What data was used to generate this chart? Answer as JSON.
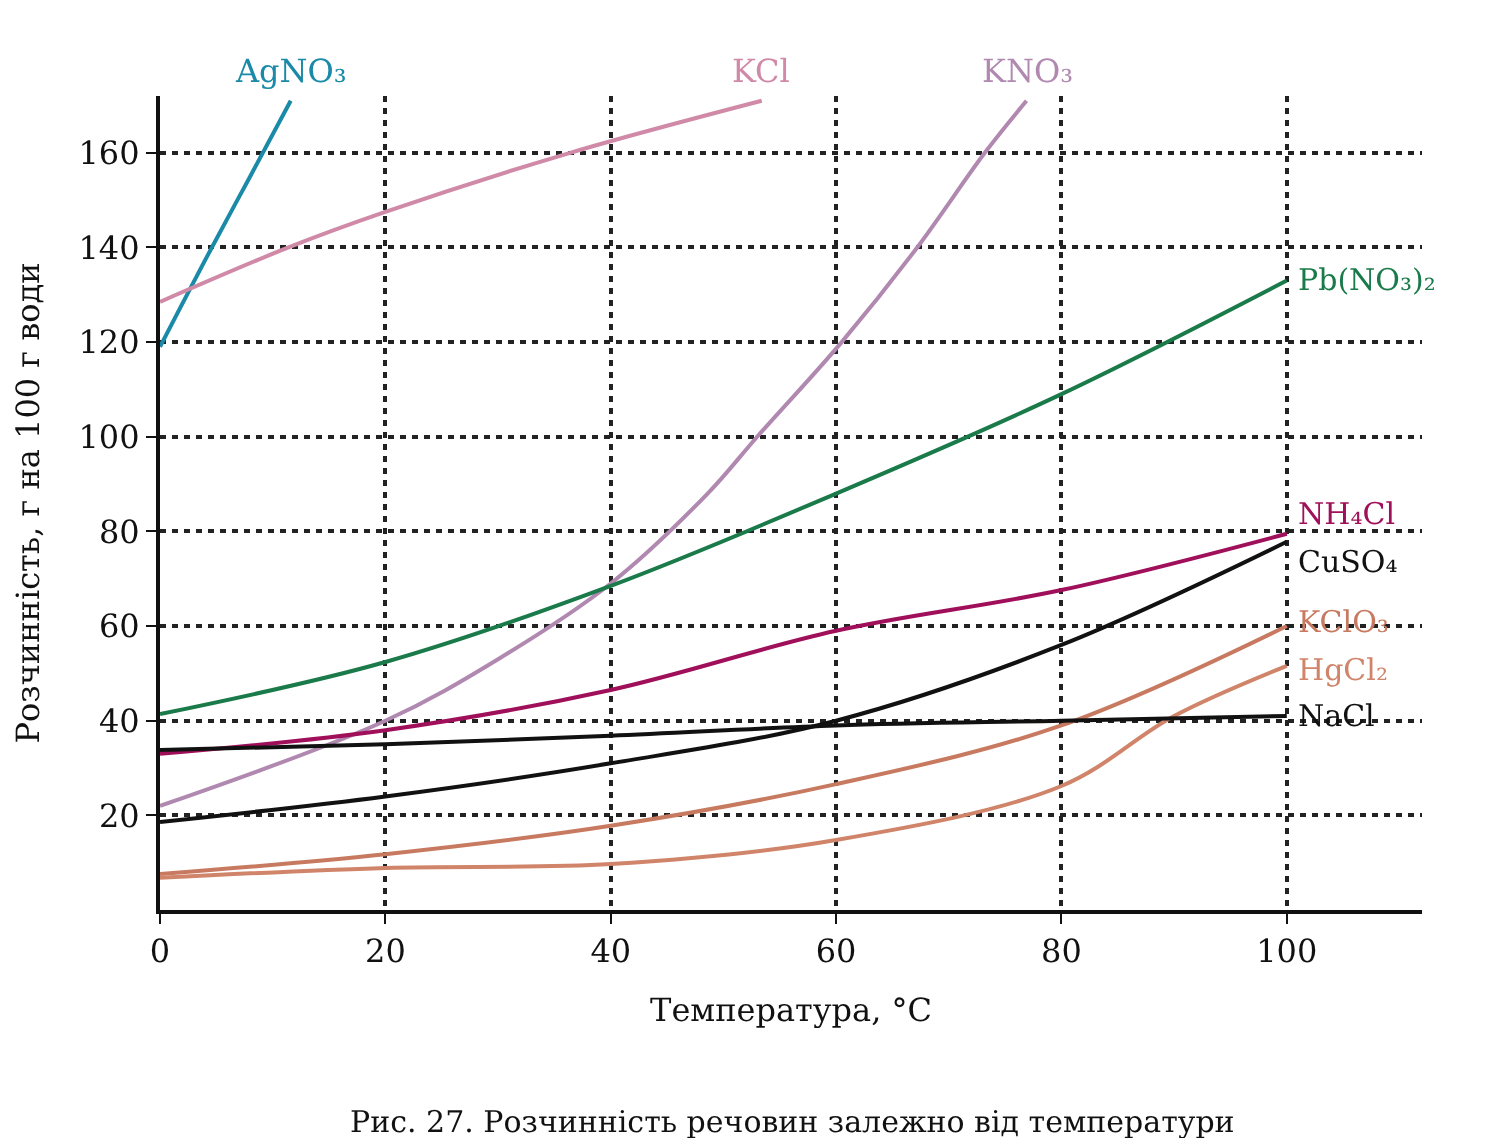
{
  "chart_data": {
    "type": "line",
    "xlabel": "Температура, °C",
    "ylabel": "Розчинність, г на 100 г води",
    "xlim": [
      0,
      112
    ],
    "xticks": [
      0,
      20,
      40,
      60,
      80,
      100
    ],
    "ylim": [
      0,
      172
    ],
    "yticks": [
      20,
      40,
      60,
      80,
      100,
      120,
      140,
      160
    ],
    "grid": true,
    "legend": false,
    "marker": "none",
    "line_style": "solid",
    "series": [
      {
        "name": "AgNO₃",
        "color": "#1a8aa8",
        "x": [
          0,
          4.6,
          8,
          11.6
        ],
        "values": [
          119,
          140,
          155,
          171
        ]
      },
      {
        "name": "KCl",
        "color": "#d08aa8",
        "x": [
          0,
          11.4,
          20,
          36.4,
          53.4
        ],
        "values": [
          128.5,
          140,
          147.5,
          160,
          171
        ]
      },
      {
        "name": "KNO₃",
        "color": "#b088b0",
        "x": [
          0,
          20,
          30,
          40,
          48.6,
          53,
          60.5,
          67.2,
          73.2,
          76.9
        ],
        "values": [
          22,
          40,
          53,
          69,
          88,
          100,
          120,
          140,
          160,
          171
        ]
      },
      {
        "name": "Pb(NO₃)₂",
        "color": "#1a7a4a",
        "x": [
          0,
          20,
          40,
          60,
          80,
          100
        ],
        "values": [
          41.4,
          52.4,
          68.5,
          88,
          109,
          133
        ]
      },
      {
        "name": "NH₄Cl",
        "color": "#a0105a",
        "x": [
          0,
          20,
          40,
          60,
          80,
          100
        ],
        "values": [
          33,
          38,
          46.5,
          59,
          67.6,
          79.5
        ]
      },
      {
        "name": "CuSO₄",
        "color": "#111111",
        "x": [
          0,
          20,
          40,
          60,
          80,
          100
        ],
        "values": [
          18.6,
          24,
          31,
          40,
          56,
          77.8
        ]
      },
      {
        "name": "KClO₃",
        "color": "#c87a60",
        "x": [
          0,
          20,
          40,
          60,
          80,
          100
        ],
        "values": [
          7.6,
          11.8,
          17.8,
          26.6,
          39,
          60
        ]
      },
      {
        "name": "HgCl₂",
        "color": "#d0846a",
        "x": [
          0,
          20,
          40,
          60,
          80,
          90,
          100
        ],
        "values": [
          6.8,
          8.9,
          9.7,
          14.8,
          26.2,
          41,
          51.6
        ]
      },
      {
        "name": "NaCl",
        "color": "#111111",
        "x": [
          0,
          20,
          40,
          60,
          80,
          100
        ],
        "values": [
          33.8,
          35,
          36.8,
          39,
          40,
          41
        ]
      }
    ],
    "annotations": [
      "Рис. 27. Розчинність речовин залежно від температури"
    ]
  }
}
